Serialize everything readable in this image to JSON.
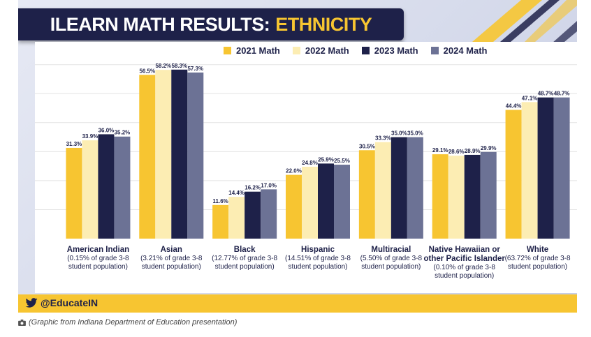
{
  "title": {
    "main": "ILEARN MATH RESULTS:",
    "accent": "ETHNICITY"
  },
  "colors": {
    "navy": "#1e2149",
    "yellow": "#f7c531",
    "footer": "#f7c531"
  },
  "footer": {
    "handle": "@EducateIN",
    "icon": "twitter-bird-icon"
  },
  "caption": {
    "text": "(Graphic from Indiana Department of Education presentation)",
    "icon": "camera-icon"
  },
  "chart_data": {
    "type": "bar",
    "categories": [
      "American Indian",
      "Asian",
      "Black",
      "Hispanic",
      "Multiracial",
      "Native Hawaiian or other Pacific Islander",
      "White"
    ],
    "category_labels": [
      {
        "name": "American Indian",
        "sub": "(0.15% of grade 3-8 student population)"
      },
      {
        "name": "Asian",
        "sub": "(3.21% of grade 3-8 student population)"
      },
      {
        "name": "Black",
        "sub": "(12.77% of grade 3-8 student population)"
      },
      {
        "name": "Hispanic",
        "sub": "(14.51% of grade 3-8 student population)"
      },
      {
        "name": "Multiracial",
        "sub": "(5.50% of grade 3-8 student population)"
      },
      {
        "name": "Native Hawaiian or other Pacific Islander",
        "sub": "(0.10% of grade 3-8 student population)"
      },
      {
        "name": "White",
        "sub": "(63.72% of grade 3-8 student population)"
      }
    ],
    "series": [
      {
        "name": "2021 Math",
        "color": "#f7c531",
        "values": [
          31.3,
          56.5,
          11.6,
          22.0,
          30.5,
          29.1,
          44.4
        ],
        "labels": [
          "31.3%",
          "56.5%",
          "11.6%",
          "22.0%",
          "30.5%",
          "29.1%",
          "44.4%"
        ]
      },
      {
        "name": "2022 Math",
        "color": "#fcedb3",
        "values": [
          33.9,
          58.2,
          14.4,
          24.8,
          33.3,
          28.6,
          47.1
        ],
        "labels": [
          "33.9%",
          "58.2%",
          "14.4%",
          "24.8%",
          "33.3%",
          "28.6%",
          "47.1%"
        ]
      },
      {
        "name": "2023 Math",
        "color": "#1e2149",
        "values": [
          36.0,
          58.3,
          16.2,
          25.9,
          35.0,
          28.9,
          48.7
        ],
        "labels": [
          "36.0%",
          "58.3%",
          "16.2%",
          "25.9%",
          "35.0%",
          "28.9%",
          "48.7%"
        ]
      },
      {
        "name": "2024 Math",
        "color": "#6c7295",
        "values": [
          35.2,
          57.3,
          17.0,
          25.5,
          35.0,
          29.9,
          48.7
        ],
        "labels": [
          "35.2%",
          "57.3%",
          "17.0%",
          "25.5%",
          "35.0%",
          "29.9%",
          "48.7%"
        ]
      }
    ],
    "ylim": [
      0,
      60
    ],
    "grid": true,
    "legend": "top-center"
  }
}
